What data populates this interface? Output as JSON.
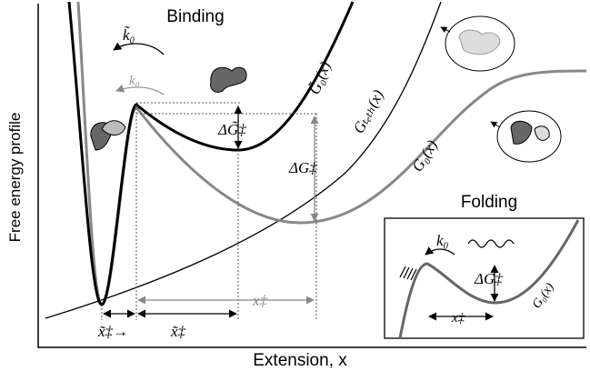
{
  "main": {
    "title": "Binding",
    "y_axis_label": "Free energy profile",
    "x_axis_label": "Extension, x",
    "rate_tilde": "k̃₀",
    "rate": "k₀",
    "curve_bound": "G̃₀(x)",
    "curve_tether": "Gₜₑₜₕ(x)",
    "curve_free": "G₀(x)",
    "barrier_tilde": "ΔG̃‡",
    "barrier": "ΔG‡",
    "distance_arrow": "x̃‡→",
    "distance_tilde": "x̃‡",
    "distance": "x‡"
  },
  "inset": {
    "title": "Folding",
    "rate": "k₀",
    "barrier": "ΔG‡",
    "distance": "x‡",
    "curve": "G₀(x)"
  }
}
